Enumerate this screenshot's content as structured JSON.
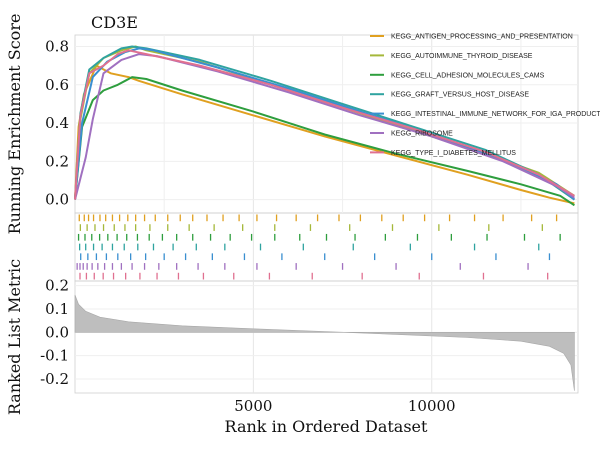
{
  "chart_data": {
    "type": "line",
    "title": "CD3E",
    "x_axis": {
      "label": "Rank in Ordered Dataset",
      "range": [
        0,
        14100
      ],
      "ticks": [
        5000,
        10000
      ]
    },
    "enrichment_panel": {
      "ylabel": "Running Enrichment Score",
      "ylim": [
        -0.07,
        0.86
      ],
      "yticks": [
        0.0,
        0.2,
        0.4,
        0.6,
        0.8
      ],
      "grid": true,
      "series": [
        {
          "name": "KEGG_ANTIGEN_PROCESSING_AND_PRESENTATION",
          "color": "#E0A020",
          "points": [
            [
              0,
              0.0
            ],
            [
              100,
              0.38
            ],
            [
              250,
              0.55
            ],
            [
              600,
              0.7
            ],
            [
              1000,
              0.66
            ],
            [
              1500,
              0.64
            ],
            [
              1800,
              0.62
            ],
            [
              3000,
              0.55
            ],
            [
              5000,
              0.44
            ],
            [
              7000,
              0.33
            ],
            [
              9000,
              0.23
            ],
            [
              11000,
              0.13
            ],
            [
              12500,
              0.05
            ],
            [
              13300,
              0.01
            ],
            [
              14000,
              -0.02
            ]
          ]
        },
        {
          "name": "KEGG_AUTOIMMUNE_THYROID_DISEASE",
          "color": "#A5B83A",
          "points": [
            [
              0,
              0.0
            ],
            [
              150,
              0.42
            ],
            [
              400,
              0.66
            ],
            [
              800,
              0.74
            ],
            [
              1300,
              0.78
            ],
            [
              1700,
              0.8
            ],
            [
              2000,
              0.78
            ],
            [
              3500,
              0.72
            ],
            [
              5500,
              0.6
            ],
            [
              7500,
              0.48
            ],
            [
              9500,
              0.36
            ],
            [
              11500,
              0.24
            ],
            [
              13000,
              0.14
            ],
            [
              14000,
              0.02
            ]
          ]
        },
        {
          "name": "KEGG_CELL_ADHESION_MOLECULES_CAMS",
          "color": "#2E9E3E",
          "points": [
            [
              0,
              0.0
            ],
            [
              200,
              0.38
            ],
            [
              500,
              0.52
            ],
            [
              800,
              0.57
            ],
            [
              1200,
              0.6
            ],
            [
              1600,
              0.64
            ],
            [
              2000,
              0.63
            ],
            [
              3000,
              0.57
            ],
            [
              5000,
              0.46
            ],
            [
              7000,
              0.34
            ],
            [
              9000,
              0.24
            ],
            [
              11000,
              0.15
            ],
            [
              12500,
              0.08
            ],
            [
              13600,
              0.02
            ],
            [
              14000,
              -0.03
            ]
          ]
        },
        {
          "name": "KEGG_GRAFT_VERSUS_HOST_DISEASE",
          "color": "#2FA3A0",
          "points": [
            [
              0,
              0.0
            ],
            [
              150,
              0.45
            ],
            [
              400,
              0.68
            ],
            [
              800,
              0.74
            ],
            [
              1300,
              0.79
            ],
            [
              1600,
              0.8
            ],
            [
              2000,
              0.79
            ],
            [
              3500,
              0.73
            ],
            [
              5500,
              0.62
            ],
            [
              7500,
              0.5
            ],
            [
              9500,
              0.38
            ],
            [
              11500,
              0.26
            ],
            [
              13000,
              0.13
            ],
            [
              14000,
              0.0
            ]
          ]
        },
        {
          "name": "KEGG_INTESTINAL_IMMUNE_NETWORK_FOR_IGA_PRODUCTION",
          "color": "#3A8FD0",
          "points": [
            [
              0,
              0.0
            ],
            [
              200,
              0.4
            ],
            [
              500,
              0.64
            ],
            [
              900,
              0.72
            ],
            [
              1400,
              0.77
            ],
            [
              1800,
              0.79
            ],
            [
              2200,
              0.78
            ],
            [
              4000,
              0.69
            ],
            [
              6000,
              0.58
            ],
            [
              8000,
              0.46
            ],
            [
              10000,
              0.34
            ],
            [
              12000,
              0.21
            ],
            [
              13500,
              0.08
            ],
            [
              14000,
              0.0
            ]
          ]
        },
        {
          "name": "KEGG_RIBOSOME",
          "color": "#A070C0",
          "points": [
            [
              0,
              0.0
            ],
            [
              300,
              0.22
            ],
            [
              500,
              0.42
            ],
            [
              800,
              0.66
            ],
            [
              1300,
              0.73
            ],
            [
              1800,
              0.76
            ],
            [
              2300,
              0.75
            ],
            [
              4000,
              0.67
            ],
            [
              6000,
              0.56
            ],
            [
              8000,
              0.44
            ],
            [
              10000,
              0.33
            ],
            [
              12000,
              0.2
            ],
            [
              13500,
              0.07
            ],
            [
              14000,
              0.01
            ]
          ]
        },
        {
          "name": "KEGG_TYPE_I_DIABETES_MELLITUS",
          "color": "#E07090",
          "points": [
            [
              0,
              0.0
            ],
            [
              150,
              0.44
            ],
            [
              400,
              0.66
            ],
            [
              800,
              0.7
            ],
            [
              1200,
              0.76
            ],
            [
              1500,
              0.78
            ],
            [
              2000,
              0.76
            ],
            [
              3500,
              0.7
            ],
            [
              5500,
              0.6
            ],
            [
              7500,
              0.48
            ],
            [
              9500,
              0.37
            ],
            [
              11500,
              0.25
            ],
            [
              13000,
              0.13
            ],
            [
              14000,
              0.02
            ]
          ]
        }
      ]
    },
    "hit_panel": {
      "rows": [
        {
          "name": "KEGG_ANTIGEN_PROCESSING_AND_PRESENTATION",
          "hits": [
            120,
            260,
            380,
            520,
            700,
            860,
            1050,
            1250,
            1480,
            1700,
            1950,
            2250,
            2600,
            2950,
            3300,
            3700,
            4150,
            4600,
            5100,
            5650,
            6200,
            6800,
            7400,
            8000,
            8600,
            9200,
            9800,
            10500,
            11200,
            12000,
            12800,
            13500
          ]
        },
        {
          "name": "KEGG_AUTOIMMUNE_THYROID_DISEASE",
          "hits": [
            150,
            340,
            560,
            800,
            1100,
            1400,
            1700,
            2100,
            2600,
            3200,
            3900,
            4700,
            5600,
            6600,
            7700,
            8900,
            10200,
            11600,
            13100
          ]
        },
        {
          "name": "KEGG_CELL_ADHESION_MOLECULES_CAMS",
          "hits": [
            100,
            280,
            470,
            690,
            920,
            1180,
            1450,
            1750,
            2080,
            2450,
            2850,
            3300,
            3800,
            4350,
            4950,
            5600,
            6300,
            7050,
            7850,
            8700,
            9600,
            10550,
            11550,
            12600,
            13600
          ]
        },
        {
          "name": "KEGG_GRAFT_VERSUS_HOST_DISEASE",
          "hits": [
            130,
            300,
            520,
            760,
            1050,
            1380,
            1760,
            2200,
            2750,
            3400,
            4200,
            5200,
            6400,
            7800,
            9400,
            11200,
            13000
          ]
        },
        {
          "name": "KEGG_INTESTINAL_IMMUNE_NETWORK_FOR_IGA_PRODUCTION",
          "hits": [
            160,
            360,
            600,
            880,
            1200,
            1560,
            1980,
            2500,
            3100,
            3850,
            4750,
            5800,
            7000,
            8400,
            10000,
            11800,
            13300
          ]
        },
        {
          "name": "KEGG_RIBOSOME",
          "hits": [
            60,
            140,
            230,
            340,
            480,
            640,
            830,
            1050,
            1300,
            1600,
            1950,
            2350,
            2850,
            3450,
            4200,
            5100,
            6200,
            7500,
            9000,
            10800,
            12700
          ]
        },
        {
          "name": "KEGG_TYPE_I_DIABETES_MELLITUS",
          "hits": [
            140,
            320,
            540,
            790,
            1080,
            1420,
            1820,
            2300,
            2900,
            3600,
            4450,
            5450,
            6650,
            8050,
            9650,
            11450,
            13250
          ]
        }
      ]
    },
    "ranked_panel": {
      "ylabel": "Ranked List Metric",
      "ylim": [
        -0.26,
        0.22
      ],
      "yticks": [
        0.2,
        0.1,
        0.0,
        -0.1,
        -0.2
      ],
      "fill_color": "#BEBEBE",
      "profile": [
        [
          0,
          0.16
        ],
        [
          100,
          0.12
        ],
        [
          300,
          0.09
        ],
        [
          700,
          0.065
        ],
        [
          1500,
          0.045
        ],
        [
          3000,
          0.028
        ],
        [
          5000,
          0.015
        ],
        [
          7000,
          0.003
        ],
        [
          9000,
          -0.009
        ],
        [
          11000,
          -0.022
        ],
        [
          12500,
          -0.038
        ],
        [
          13300,
          -0.06
        ],
        [
          13700,
          -0.09
        ],
        [
          13900,
          -0.14
        ],
        [
          14000,
          -0.25
        ]
      ]
    }
  }
}
